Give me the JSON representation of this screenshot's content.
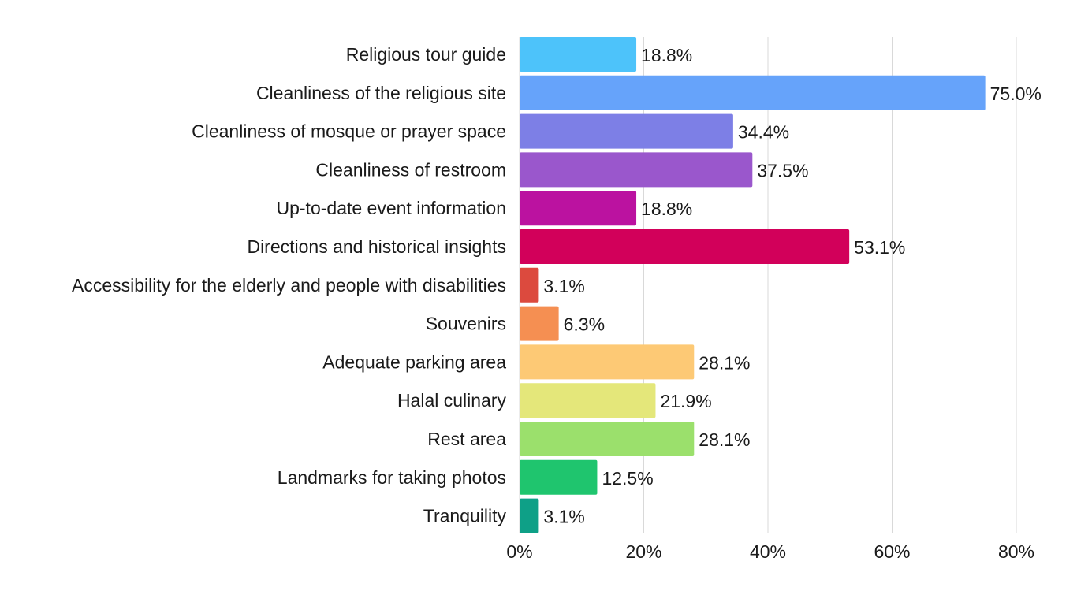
{
  "chart_data": {
    "type": "bar",
    "orientation": "horizontal",
    "categories": [
      "Religious tour guide",
      "Cleanliness of the religious site",
      "Cleanliness of mosque or prayer space",
      "Cleanliness of restroom",
      "Up-to-date event information",
      "Directions and historical insights",
      "Accessibility for the elderly and people with disabilities",
      "Souvenirs",
      "Adequate parking area",
      "Halal culinary",
      "Rest area",
      "Landmarks for taking photos",
      "Tranquility"
    ],
    "values": [
      18.8,
      75.0,
      34.4,
      37.5,
      18.8,
      53.1,
      3.1,
      6.3,
      28.1,
      21.9,
      28.1,
      12.5,
      3.1
    ],
    "value_labels": [
      "18.8%",
      "75.0%",
      "34.4%",
      "37.5%",
      "18.8%",
      "53.1%",
      "3.1%",
      "6.3%",
      "28.1%",
      "21.9%",
      "28.1%",
      "12.5%",
      "3.1%"
    ],
    "colors": [
      "#4dc3fa",
      "#66a3fa",
      "#7d7fe6",
      "#9a57cc",
      "#bb12a0",
      "#d2005a",
      "#dc4a3e",
      "#f58f52",
      "#fdc975",
      "#e4e77a",
      "#9be06c",
      "#1fc56e",
      "#0ea087"
    ],
    "xlim": [
      0,
      80
    ],
    "x_ticks": [
      0,
      20,
      40,
      60,
      80
    ],
    "x_tick_labels": [
      "0%",
      "20%",
      "40%",
      "60%",
      "80%"
    ],
    "grid": true,
    "title": "",
    "xlabel": "",
    "ylabel": ""
  }
}
